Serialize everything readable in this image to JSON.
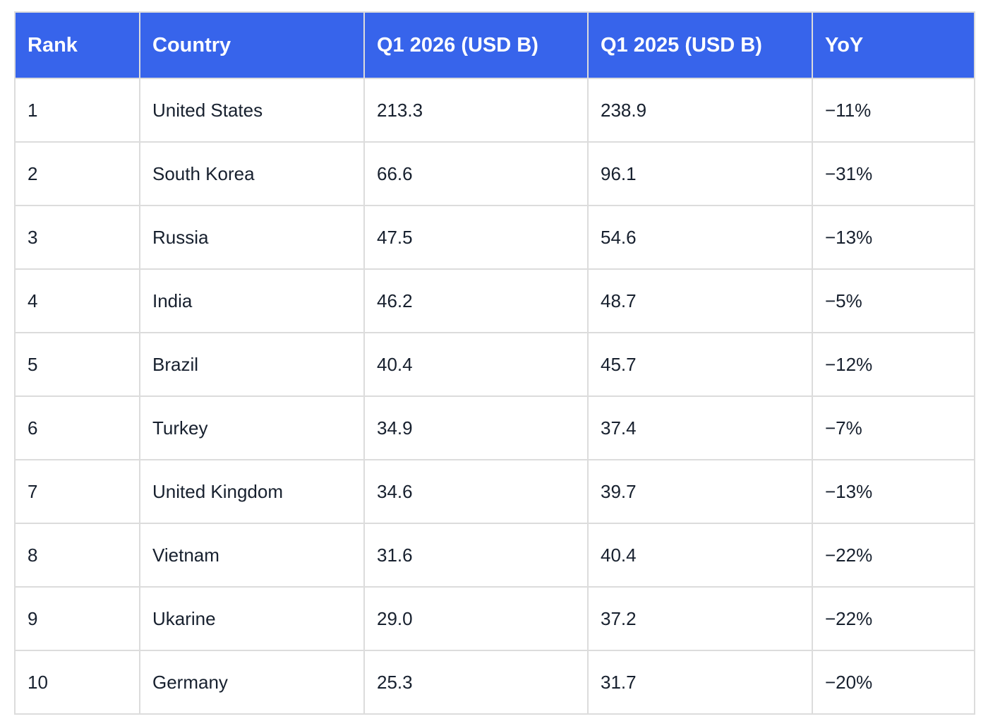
{
  "table": {
    "header_color": "#3764eb",
    "columns": [
      "Rank",
      "Country",
      "Q1 2026 (USD B)",
      "Q1 2025 (USD B)",
      "YoY"
    ],
    "rows": [
      [
        "1",
        "United States",
        "213.3",
        "238.9",
        "−11%"
      ],
      [
        "2",
        "South Korea",
        "66.6",
        "96.1",
        "−31%"
      ],
      [
        "3",
        "Russia",
        "47.5",
        "54.6",
        "−13%"
      ],
      [
        "4",
        "India",
        "46.2",
        "48.7",
        "−5%"
      ],
      [
        "5",
        "Brazil",
        "40.4",
        "45.7",
        "−12%"
      ],
      [
        "6",
        "Turkey",
        "34.9",
        "37.4",
        "−7%"
      ],
      [
        "7",
        "United Kingdom",
        "34.6",
        "39.7",
        "−13%"
      ],
      [
        "8",
        "Vietnam",
        "31.6",
        "40.4",
        "−22%"
      ],
      [
        "9",
        "Ukarine",
        "29.0",
        "37.2",
        "−22%"
      ],
      [
        "10",
        "Germany",
        "25.3",
        "31.7",
        "−20%"
      ]
    ]
  }
}
